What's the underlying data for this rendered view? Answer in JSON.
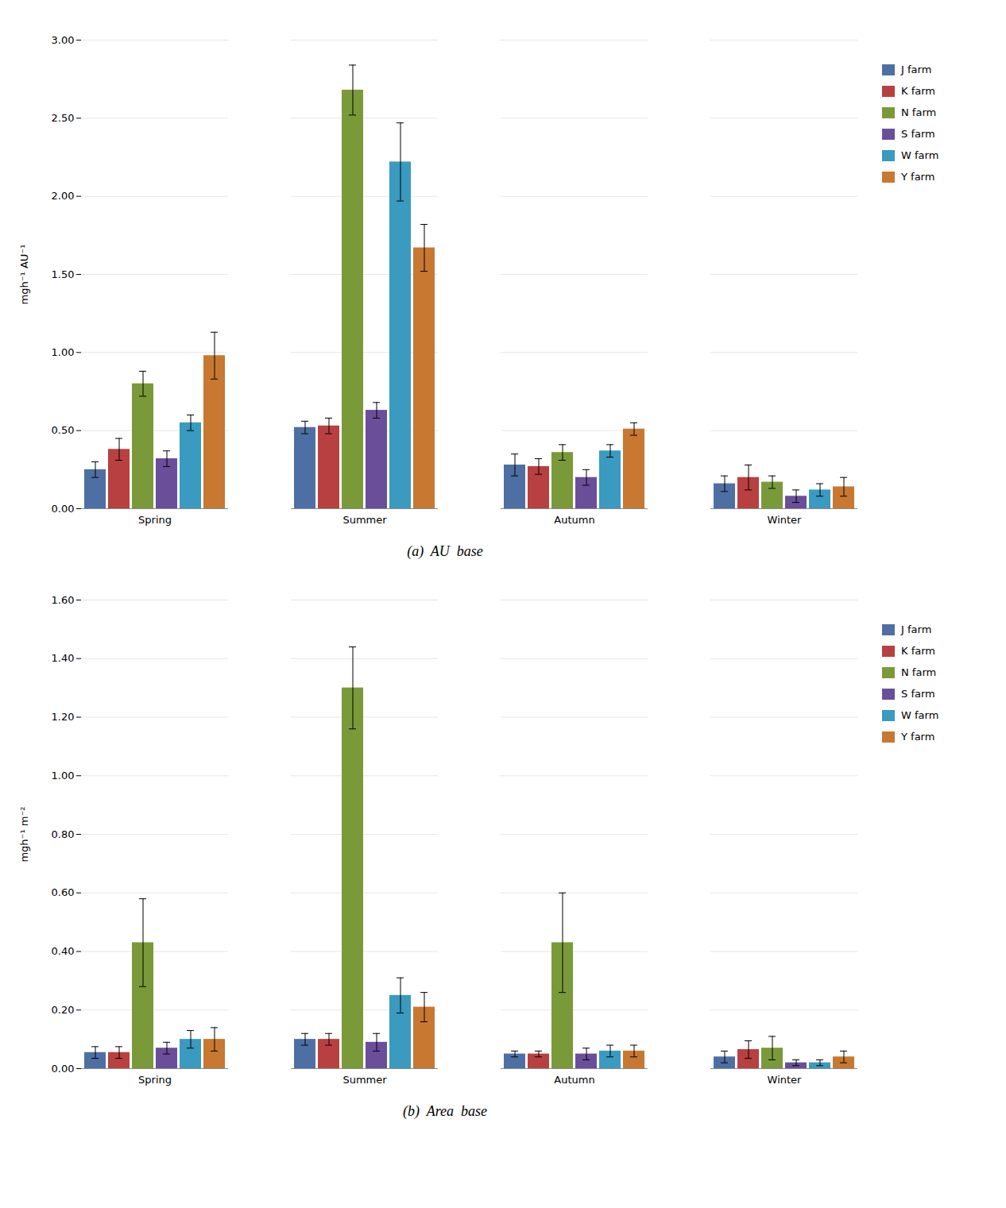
{
  "chart_data": [
    {
      "type": "bar",
      "caption": "(a)  AU  base",
      "ylabel": "mgh⁻¹ AU⁻¹",
      "categories": [
        "Spring",
        "Summer",
        "Autumn",
        "Winter"
      ],
      "series": [
        {
          "name": "J farm",
          "color": "#4e6fa3",
          "values": [
            0.25,
            0.52,
            0.28,
            0.16
          ],
          "errors": [
            0.05,
            0.04,
            0.07,
            0.05
          ]
        },
        {
          "name": "K farm",
          "color": "#b94040",
          "values": [
            0.38,
            0.53,
            0.27,
            0.2
          ],
          "errors": [
            0.07,
            0.05,
            0.05,
            0.08
          ]
        },
        {
          "name": "N farm",
          "color": "#7a9a3a",
          "values": [
            0.8,
            2.68,
            0.36,
            0.17
          ],
          "errors": [
            0.08,
            0.16,
            0.05,
            0.04
          ]
        },
        {
          "name": "S farm",
          "color": "#6b4e9a",
          "values": [
            0.32,
            0.63,
            0.2,
            0.08
          ],
          "errors": [
            0.05,
            0.05,
            0.05,
            0.04
          ]
        },
        {
          "name": "W farm",
          "color": "#3a9abf",
          "values": [
            0.55,
            2.22,
            0.37,
            0.12
          ],
          "errors": [
            0.05,
            0.25,
            0.04,
            0.04
          ]
        },
        {
          "name": "Y farm",
          "color": "#c87830",
          "values": [
            0.98,
            1.67,
            0.51,
            0.14
          ],
          "errors": [
            0.15,
            0.15,
            0.04,
            0.06
          ]
        }
      ],
      "ylim": [
        0.0,
        3.0
      ],
      "yticks": [
        {
          "value": 0.0,
          "label": "0.00"
        },
        {
          "value": 0.5,
          "label": "0.50"
        },
        {
          "value": 1.0,
          "label": "1.00"
        },
        {
          "value": 1.5,
          "label": "1.50"
        },
        {
          "value": 2.0,
          "label": "2.00"
        },
        {
          "value": 2.5,
          "label": "2.50"
        },
        {
          "value": 3.0,
          "label": "3.00"
        }
      ],
      "grid": true,
      "legend": "right"
    },
    {
      "type": "bar",
      "caption": "(b)  Area  base",
      "ylabel": "mgh⁻¹ m⁻²",
      "categories": [
        "Spring",
        "Summer",
        "Autumn",
        "Winter"
      ],
      "series": [
        {
          "name": "J farm",
          "color": "#4e6fa3",
          "values": [
            0.055,
            0.1,
            0.05,
            0.04
          ],
          "errors": [
            0.02,
            0.02,
            0.01,
            0.02
          ]
        },
        {
          "name": "K farm",
          "color": "#b94040",
          "values": [
            0.055,
            0.1,
            0.05,
            0.065
          ],
          "errors": [
            0.02,
            0.02,
            0.01,
            0.03
          ]
        },
        {
          "name": "N farm",
          "color": "#7a9a3a",
          "values": [
            0.43,
            1.3,
            0.43,
            0.07
          ],
          "errors": [
            0.15,
            0.14,
            0.17,
            0.04
          ]
        },
        {
          "name": "S farm",
          "color": "#6b4e9a",
          "values": [
            0.07,
            0.09,
            0.05,
            0.02
          ],
          "errors": [
            0.02,
            0.03,
            0.02,
            0.01
          ]
        },
        {
          "name": "W farm",
          "color": "#3a9abf",
          "values": [
            0.1,
            0.25,
            0.06,
            0.02
          ],
          "errors": [
            0.03,
            0.06,
            0.02,
            0.01
          ]
        },
        {
          "name": "Y farm",
          "color": "#c87830",
          "values": [
            0.1,
            0.21,
            0.06,
            0.04
          ],
          "errors": [
            0.04,
            0.05,
            0.02,
            0.02
          ]
        }
      ],
      "ylim": [
        0.0,
        1.6
      ],
      "yticks": [
        {
          "value": 0.0,
          "label": "0.00"
        },
        {
          "value": 0.2,
          "label": "0.20"
        },
        {
          "value": 0.4,
          "label": "0.40"
        },
        {
          "value": 0.6,
          "label": "0.60"
        },
        {
          "value": 0.8,
          "label": "0.80"
        },
        {
          "value": 1.0,
          "label": "1.00"
        },
        {
          "value": 1.2,
          "label": "1.20"
        },
        {
          "value": 1.4,
          "label": "1.40"
        },
        {
          "value": 1.6,
          "label": "1.60"
        }
      ],
      "grid": true,
      "legend": "right"
    }
  ]
}
